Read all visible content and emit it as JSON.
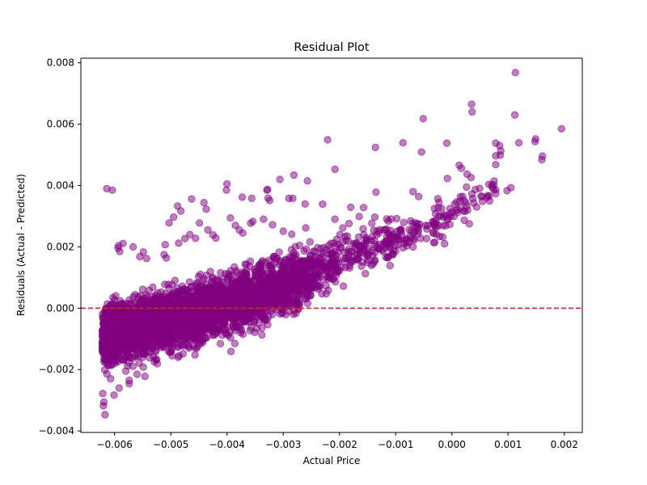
{
  "chart_data": {
    "type": "scatter",
    "title": "Residual Plot",
    "xlabel": "Actual Price",
    "ylabel": "Residuals (Actual - Predicted)",
    "xlim": [
      -0.0066,
      0.00232
    ],
    "ylim": [
      -0.00405,
      0.00815
    ],
    "xticks": [
      -0.006,
      -0.005,
      -0.004,
      -0.003,
      -0.002,
      -0.001,
      0.0,
      0.001,
      0.002
    ],
    "xtick_labels": [
      "−0.006",
      "−0.005",
      "−0.004",
      "−0.003",
      "−0.002",
      "−0.001",
      "0.000",
      "0.001",
      "0.002"
    ],
    "yticks": [
      -0.004,
      -0.002,
      0.0,
      0.002,
      0.004,
      0.006,
      0.008
    ],
    "ytick_labels": [
      "−0.004",
      "−0.002",
      "0.000",
      "0.002",
      "0.004",
      "0.006",
      "0.008"
    ],
    "grid": false,
    "marker_color": "#800080",
    "reference_line": {
      "y": 0.0,
      "color": "#d62728",
      "style": "dashed"
    },
    "points": [
      [
        0.00113,
        0.00768
      ],
      [
        0.00035,
        0.00665
      ],
      [
        0.00036,
        0.0064
      ],
      [
        0.00112,
        0.0063
      ],
      [
        -0.00051,
        0.00618
      ],
      [
        0.00195,
        0.00585
      ],
      [
        0.00149,
        0.00552
      ],
      [
        0.00148,
        0.00543
      ],
      [
        0.00119,
        0.00539
      ],
      [
        0.00078,
        0.00538
      ],
      [
        0.00085,
        0.0053
      ],
      [
        0.00087,
        0.00513
      ],
      [
        0.00078,
        0.00497
      ],
      [
        0.00086,
        0.00499
      ],
      [
        0.00161,
        0.00496
      ],
      [
        0.0016,
        0.00484
      ],
      [
        0.00078,
        0.00468
      ],
      [
        0.00013,
        0.00466
      ],
      [
        0.00017,
        0.00456
      ],
      [
        0.00027,
        0.00437
      ],
      [
        0.00034,
        0.00426
      ],
      [
        -8e-05,
        0.00423
      ],
      [
        0.00026,
        0.00395
      ],
      [
        0.00105,
        0.00393
      ],
      [
        0.00098,
        0.00383
      ],
      [
        0.00078,
        0.00386
      ],
      [
        0.00078,
        0.00374
      ],
      [
        0.00015,
        0.00363
      ],
      [
        -0.00025,
        0.00357
      ],
      [
        -0.00023,
        0.00345
      ],
      [
        5e-05,
        0.0034
      ],
      [
        -0.00031,
        0.00325
      ],
      [
        -0.00029,
        0.00308
      ],
      [
        0.00044,
        0.0033
      ],
      [
        4e-05,
        0.00299
      ],
      [
        0.00022,
        0.00287
      ],
      [
        -0.00136,
        0.00524
      ],
      [
        -0.00087,
        0.00539
      ],
      [
        -0.00054,
        0.00509
      ],
      [
        -9e-05,
        0.00538
      ],
      [
        -0.00221,
        0.00549
      ],
      [
        -0.00208,
        0.00453
      ],
      [
        -0.00257,
        0.00415
      ],
      [
        -0.00281,
        0.00434
      ],
      [
        -0.00306,
        0.0042
      ],
      [
        -0.00329,
        0.00385
      ],
      [
        -0.00328,
        0.00387
      ],
      [
        -0.0029,
        0.00358
      ],
      [
        -0.00283,
        0.00358
      ],
      [
        -0.00261,
        0.0034
      ],
      [
        -0.0023,
        0.00339
      ],
      [
        -0.0018,
        0.00329
      ],
      [
        -0.00157,
        0.00328
      ],
      [
        -0.00135,
        0.00378
      ],
      [
        -0.00069,
        0.0038
      ],
      [
        -0.00059,
        0.00364
      ],
      [
        -0.004,
        0.00405
      ],
      [
        -0.00401,
        0.00385
      ],
      [
        -0.00373,
        0.00362
      ],
      [
        -0.00356,
        0.00358
      ],
      [
        -0.00327,
        0.00359
      ],
      [
        -0.00324,
        0.00351
      ],
      [
        -0.00463,
        0.00356
      ],
      [
        -0.00482,
        0.00317
      ],
      [
        -0.00488,
        0.00333
      ],
      [
        -0.00441,
        0.00344
      ],
      [
        -0.00437,
        0.00323
      ],
      [
        -0.00614,
        0.0039
      ],
      [
        -0.00604,
        0.00385
      ],
      [
        -0.00495,
        0.00297
      ],
      [
        -0.00449,
        0.00278
      ],
      [
        -0.00503,
        0.00278
      ],
      [
        -0.00585,
        0.00211
      ],
      [
        -0.00593,
        0.00204
      ],
      [
        -0.00594,
        0.00196
      ],
      [
        -0.00591,
        0.00185
      ],
      [
        -0.00567,
        0.002
      ],
      [
        -0.00549,
        0.00183
      ],
      [
        -0.00555,
        0.00168
      ],
      [
        -0.00543,
        0.00162
      ],
      [
        -0.0051,
        0.00207
      ],
      [
        -0.00512,
        0.00175
      ],
      [
        -0.00508,
        0.00164
      ],
      [
        -0.00475,
        0.00227
      ],
      [
        -0.00466,
        0.0024
      ],
      [
        -0.00486,
        0.00212
      ],
      [
        -0.00456,
        0.00228
      ],
      [
        -0.00434,
        0.00255
      ],
      [
        -0.00425,
        0.00239
      ],
      [
        -0.0042,
        0.00229
      ],
      [
        -0.00394,
        0.00294
      ],
      [
        -0.00385,
        0.0027
      ],
      [
        -0.00378,
        0.00255
      ],
      [
        -0.00372,
        0.00245
      ],
      [
        -0.00358,
        0.00277
      ],
      [
        -0.00354,
        0.00283
      ],
      [
        -0.00335,
        0.0029
      ],
      [
        -0.00319,
        0.00272
      ],
      [
        -0.003,
        0.00251
      ],
      [
        -0.00285,
        0.00241
      ],
      [
        -0.0026,
        0.00262
      ],
      [
        -0.00208,
        0.0029
      ],
      [
        -0.00194,
        0.00262
      ],
      [
        -0.00183,
        0.00276
      ],
      [
        -0.00165,
        0.00299
      ],
      [
        -0.00137,
        0.00297
      ],
      [
        -0.00113,
        0.00284
      ],
      [
        -0.00098,
        0.00292
      ],
      [
        -0.00076,
        0.00256
      ],
      [
        -0.0006,
        0.00243
      ],
      [
        -0.00045,
        0.00227
      ],
      [
        -0.00028,
        0.00241
      ],
      [
        -0.00013,
        0.0021
      ],
      [
        -7e-05,
        0.00292
      ],
      [
        0.0001,
        0.00312
      ],
      [
        0.00031,
        0.00275
      ],
      [
        -0.00168,
        0.00176
      ],
      [
        -0.00142,
        0.00188
      ],
      [
        -0.0012,
        0.00215
      ],
      [
        -0.00105,
        0.00174
      ],
      [
        -0.00087,
        0.00197
      ],
      [
        -0.00069,
        0.002
      ],
      [
        -0.0015,
        0.00148
      ],
      [
        -0.00182,
        0.00131
      ],
      [
        -0.00207,
        0.00086
      ],
      [
        -0.00193,
        0.00072
      ],
      [
        -0.002,
        0.00122
      ],
      [
        -0.00216,
        0.00109
      ],
      [
        -0.00281,
        -7e-05
      ],
      [
        -0.00273,
        -1e-05
      ],
      [
        -0.0029,
        -0.0001
      ],
      [
        -0.00338,
        -0.00087
      ],
      [
        -0.00347,
        -0.00067
      ],
      [
        -0.00386,
        -0.00115
      ],
      [
        -0.00393,
        -0.00141
      ],
      [
        -0.00457,
        -0.00152
      ],
      [
        -0.00487,
        -0.0016
      ],
      [
        -0.00524,
        -0.00181
      ],
      [
        -0.00549,
        -0.00192
      ],
      [
        -0.00546,
        -0.00222
      ],
      [
        -0.0056,
        -0.00215
      ],
      [
        -0.00574,
        -0.00235
      ],
      [
        -0.0058,
        -0.00205
      ],
      [
        -0.00574,
        -0.00246
      ],
      [
        -0.00592,
        -0.0026
      ],
      [
        -0.00601,
        -0.00283
      ],
      [
        -0.00619,
        -0.00306
      ],
      [
        -0.0062,
        -0.00318
      ],
      [
        -0.00617,
        -0.00347
      ],
      [
        -0.00621,
        -0.00278
      ],
      [
        -0.00607,
        -0.0023
      ]
    ],
    "dense_regions": [
      {
        "x": [
          -0.00622,
          -0.00598
        ],
        "y_low": [
          -0.0023,
          -0.00215
        ],
        "y_high": [
          0.0003,
          0.0006
        ],
        "n": 500
      },
      {
        "x": [
          -0.00598,
          -0.0054
        ],
        "y_low": [
          -0.00215,
          -0.00195
        ],
        "y_high": [
          0.0006,
          0.0009
        ],
        "n": 600
      },
      {
        "x": [
          -0.0054,
          -0.0048
        ],
        "y_low": [
          -0.00195,
          -0.00175
        ],
        "y_high": [
          0.0009,
          0.0011
        ],
        "n": 550
      },
      {
        "x": [
          -0.0048,
          -0.0042
        ],
        "y_low": [
          -0.00175,
          -0.0014
        ],
        "y_high": [
          0.0011,
          0.0014
        ],
        "n": 520
      },
      {
        "x": [
          -0.0042,
          -0.0036
        ],
        "y_low": [
          -0.0014,
          -0.001
        ],
        "y_high": [
          0.0014,
          0.00175
        ],
        "n": 460
      },
      {
        "x": [
          -0.0036,
          -0.003
        ],
        "y_low": [
          -0.001,
          -0.0006
        ],
        "y_high": [
          0.00175,
          0.0021
        ],
        "n": 380
      },
      {
        "x": [
          -0.003,
          -0.0025
        ],
        "y_low": [
          -0.0006,
          -0.0001
        ],
        "y_high": [
          0.0021,
          0.0024
        ],
        "n": 260
      },
      {
        "x": [
          -0.0025,
          -0.002
        ],
        "y_low": [
          0.0,
          0.0005
        ],
        "y_high": [
          0.0023,
          0.0026
        ],
        "n": 120
      },
      {
        "x": [
          -0.002,
          -0.001
        ],
        "y_low": [
          0.0006,
          0.0012
        ],
        "y_high": [
          0.0027,
          0.0032
        ],
        "n": 120
      },
      {
        "x": [
          -0.001,
          0.0
        ],
        "y_low": [
          0.0015,
          0.0022
        ],
        "y_high": [
          0.003,
          0.0036
        ],
        "n": 70
      },
      {
        "x": [
          0.0,
          0.0008
        ],
        "y_low": [
          0.0026,
          0.0034
        ],
        "y_high": [
          0.0037,
          0.0045
        ],
        "n": 30
      }
    ]
  }
}
